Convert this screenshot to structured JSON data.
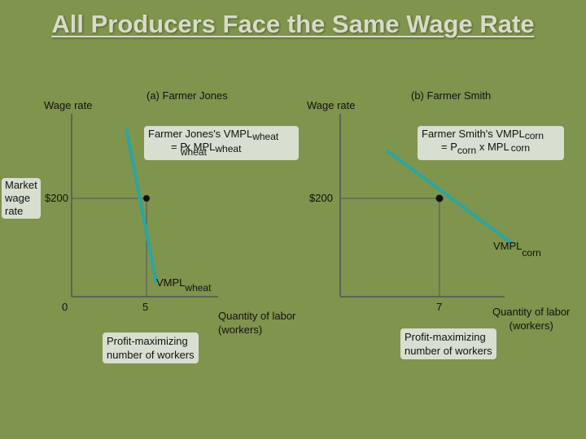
{
  "title": "All Producers Face the Same Wage Rate",
  "panel_a": {
    "heading": "(a) Farmer Jones",
    "y_axis_label": "Wage rate",
    "eq_line1_main": "Farmer Jones's VMPL",
    "eq_line1_sub": "wheat",
    "eq_line2_a": "= P",
    "eq_line2_a_sub": "wheat",
    "eq_line2_b": " x  MPL",
    "eq_line2_b_sub": "wheat",
    "wage_tick": "$200",
    "curve_label": "VMPL",
    "curve_label_sub": "wheat",
    "origin_label": "0",
    "x_tick": "5",
    "x_axis_label_line1": "Quantity of labor",
    "x_axis_label_line2": "(workers)",
    "profit_box_line1": "Profit-maximizing",
    "profit_box_line2": "number of workers"
  },
  "panel_b": {
    "heading": "(b) Farmer Smith",
    "y_axis_label": "Wage rate",
    "eq_line1_main": "Farmer Smith's VMPL",
    "eq_line1_sub": "corn",
    "eq_line2_a": "= P",
    "eq_line2_a_sub": "corn",
    "eq_line2_b": " x MPL",
    "eq_line2_b_sub": "corn",
    "wage_tick": "$200",
    "curve_label": "VMPL",
    "curve_label_sub": "corn",
    "x_tick": "7",
    "x_axis_label_line1": "Quantity of labor",
    "x_axis_label_line2": "(workers)",
    "profit_box_line1": "Profit-maximizing",
    "profit_box_line2": "number of workers"
  },
  "market_wage_box": {
    "line1": "Market",
    "line2": "wage",
    "line3": "rate"
  },
  "colors": {
    "background": "#7f944d",
    "curve": "#2aa6a0",
    "axis": "#555555",
    "box": "#d7dfd0"
  }
}
